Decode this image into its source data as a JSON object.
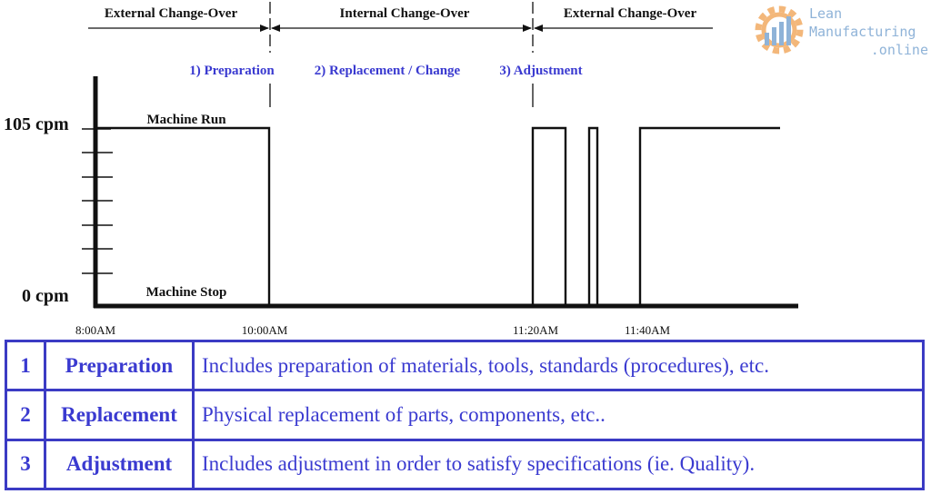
{
  "phases": {
    "external_before": "External Change-Over",
    "internal": "Internal Change-Over",
    "external_after": "External Change-Over"
  },
  "steps": {
    "preparation": "1) Preparation",
    "replacement": "2) Replacement / Change",
    "adjustment": "3) Adjustment"
  },
  "axis": {
    "y_top": "105 cpm",
    "y_bottom": "0 cpm"
  },
  "states": {
    "run": "Machine Run",
    "stop": "Machine Stop"
  },
  "times": [
    "8:00AM",
    "10:00AM",
    "11:20AM",
    "11:40AM"
  ],
  "logo": {
    "line1": "Lean",
    "line2": "Manufacturing",
    "line3": ".online"
  },
  "table": {
    "rows": [
      {
        "num": "1",
        "name": "Preparation",
        "desc": "Includes preparation of materials, tools, standards (procedures), etc."
      },
      {
        "num": "2",
        "name": "Replacement",
        "desc": "Physical replacement of parts, components, etc.."
      },
      {
        "num": "3",
        "name": "Adjustment",
        "desc": "Includes adjustment in order to satisfy specifications (ie. Quality)."
      }
    ]
  },
  "colors": {
    "accent": "#3a3ad0",
    "table_border": "#3b3bc4",
    "logo_gear": "#f3b77a",
    "logo_bars": "#8fb3d8"
  }
}
